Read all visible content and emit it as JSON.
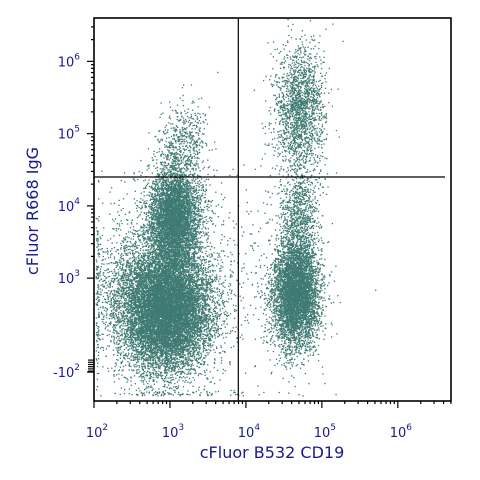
{
  "chart_data": {
    "type": "scatter",
    "title": "",
    "xlabel": "cFluor B532 CD19",
    "ylabel": "cFluor R668 IgG",
    "x_scale": "biexponential-log",
    "y_scale": "biexponential-log",
    "xlim_log10": [
      2.0,
      6.7
    ],
    "ylim_log10": [
      1.3,
      6.6
    ],
    "x_ticks": [
      {
        "base": "10",
        "exp": "2",
        "log10": 2
      },
      {
        "base": "10",
        "exp": "3",
        "log10": 3
      },
      {
        "base": "10",
        "exp": "4",
        "log10": 4
      },
      {
        "base": "10",
        "exp": "5",
        "log10": 5
      },
      {
        "base": "10",
        "exp": "6",
        "log10": 6
      }
    ],
    "y_ticks": [
      {
        "base": "-10",
        "exp": "2",
        "log10": 1.7
      },
      {
        "base": "10",
        "exp": "3",
        "log10": 3
      },
      {
        "base": "10",
        "exp": "4",
        "log10": 4
      },
      {
        "base": "10",
        "exp": "5",
        "log10": 5
      },
      {
        "base": "10",
        "exp": "6",
        "log10": 6
      }
    ],
    "quadrant_gate": {
      "x_log10": 3.9,
      "y_log10": 4.4
    },
    "point_color": "#3f7a73",
    "populations": [
      {
        "cx_log10": 2.95,
        "cy_log10": 2.55,
        "sx": 0.3,
        "sy": 0.42,
        "weight": 0.42
      },
      {
        "cx_log10": 3.05,
        "cy_log10": 3.85,
        "sx": 0.17,
        "sy": 0.38,
        "weight": 0.2
      },
      {
        "cx_log10": 3.2,
        "cy_log10": 4.95,
        "sx": 0.15,
        "sy": 0.25,
        "weight": 0.015
      },
      {
        "cx_log10": 2.55,
        "cy_log10": 2.9,
        "sx": 0.35,
        "sy": 0.55,
        "weight": 0.05
      },
      {
        "cx_log10": 4.65,
        "cy_log10": 2.8,
        "sx": 0.15,
        "sy": 0.38,
        "weight": 0.2
      },
      {
        "cx_log10": 4.7,
        "cy_log10": 3.9,
        "sx": 0.13,
        "sy": 0.35,
        "weight": 0.03
      },
      {
        "cx_log10": 4.7,
        "cy_log10": 5.35,
        "sx": 0.16,
        "sy": 0.45,
        "weight": 0.07
      },
      {
        "cx_log10": 3.8,
        "cy_log10": 3.0,
        "sx": 0.6,
        "sy": 0.9,
        "weight": 0.015
      }
    ]
  }
}
